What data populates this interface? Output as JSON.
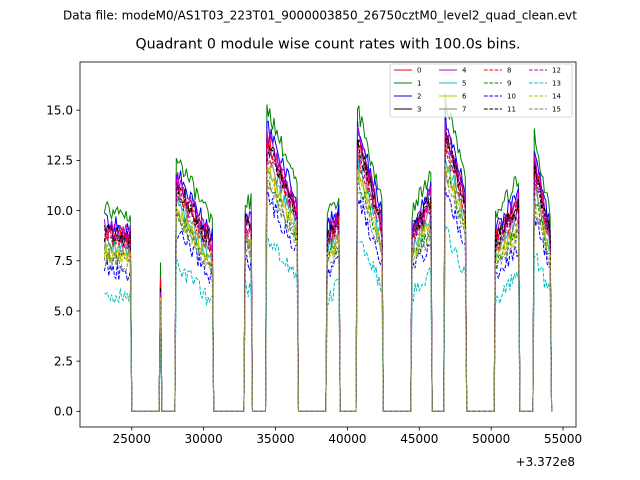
{
  "chart_data": {
    "type": "line",
    "suptitle": "Data file: modeM0/AS1T03_223T01_9000003850_26750cztM0_level2_quad_clean.evt",
    "title": "Quadrant 0 module wise count rates with 100.0s bins.",
    "xlabel": "",
    "ylabel": "",
    "x_offset_label": "+3.372e8",
    "xlim": [
      21400,
      55900
    ],
    "ylim": [
      -0.78,
      17.4
    ],
    "x_ticks": [
      25000,
      30000,
      35000,
      40000,
      45000,
      50000,
      55000
    ],
    "x_tick_labels": [
      "25000",
      "30000",
      "35000",
      "40000",
      "45000",
      "50000",
      "55000"
    ],
    "y_ticks": [
      0.0,
      2.5,
      5.0,
      7.5,
      10.0,
      12.5,
      15.0
    ],
    "y_tick_labels": [
      "0.0",
      "2.5",
      "5.0",
      "7.5",
      "10.0",
      "12.5",
      "15.0"
    ],
    "legend_position": "upper right",
    "bin_seconds": 100,
    "segments": [
      {
        "start": 23100,
        "end": 24900,
        "y0": 9.0,
        "y1": 8.7,
        "peak": 0,
        "ramp": false
      },
      {
        "start": 26950,
        "end": 27050,
        "y0": 7.0,
        "y1": 6.0,
        "peak": 0,
        "ramp": false
      },
      {
        "start": 28100,
        "end": 30600,
        "y0": 11.4,
        "y1": 8.3,
        "peak": 0,
        "ramp": false
      },
      {
        "start": 32900,
        "end": 33300,
        "y0": 9.5,
        "y1": 9.3,
        "peak": 0,
        "ramp": false
      },
      {
        "start": 34400,
        "end": 36500,
        "y0": 13.6,
        "y1": 10.0,
        "peak": 0,
        "ramp": false
      },
      {
        "start": 38600,
        "end": 39400,
        "y0": 8.8,
        "y1": 9.6,
        "peak": 0,
        "ramp": false
      },
      {
        "start": 40700,
        "end": 42400,
        "y0": 13.5,
        "y1": 9.4,
        "peak": 0,
        "ramp": false
      },
      {
        "start": 44500,
        "end": 45800,
        "y0": 8.9,
        "y1": 10.6,
        "peak": 0,
        "ramp": false
      },
      {
        "start": 46800,
        "end": 48200,
        "y0": 14.0,
        "y1": 10.5,
        "peak": 0,
        "ramp": false
      },
      {
        "start": 50300,
        "end": 51900,
        "y0": 8.6,
        "y1": 10.4,
        "peak": 0,
        "ramp": false
      },
      {
        "start": 53000,
        "end": 54100,
        "y0": 12.3,
        "y1": 8.8,
        "peak": 0,
        "ramp": false
      }
    ],
    "series": [
      {
        "name": "0",
        "color": "#ff0000",
        "dash": "solid",
        "scale": 1.0
      },
      {
        "name": "1",
        "color": "#008000",
        "dash": "solid",
        "scale": 1.12
      },
      {
        "name": "2",
        "color": "#0000ff",
        "dash": "solid",
        "scale": 1.05
      },
      {
        "name": "3",
        "color": "#000000",
        "dash": "solid",
        "scale": 1.0
      },
      {
        "name": "4",
        "color": "#bf00bf",
        "dash": "solid",
        "scale": 1.02
      },
      {
        "name": "5",
        "color": "#00bfbf",
        "dash": "solid",
        "scale": 0.91
      },
      {
        "name": "6",
        "color": "#bfbf00",
        "dash": "solid",
        "scale": 0.89
      },
      {
        "name": "7",
        "color": "#808080",
        "dash": "solid",
        "scale": 0.94
      },
      {
        "name": "8",
        "color": "#ff0000",
        "dash": "dashed",
        "scale": 0.96
      },
      {
        "name": "9",
        "color": "#008000",
        "dash": "dashed",
        "scale": 0.86
      },
      {
        "name": "10",
        "color": "#0000ff",
        "dash": "dashed",
        "scale": 0.79
      },
      {
        "name": "11",
        "color": "#000000",
        "dash": "dashed",
        "scale": 0.98
      },
      {
        "name": "12",
        "color": "#bf00bf",
        "dash": "dashed",
        "scale": 0.97
      },
      {
        "name": "13",
        "color": "#00bfbf",
        "dash": "dashed",
        "scale": 0.65
      },
      {
        "name": "14",
        "color": "#bfbf00",
        "dash": "dashed",
        "scale": 0.87
      },
      {
        "name": "15",
        "color": "#808080",
        "dash": "dashed",
        "scale": 0.84
      }
    ]
  }
}
